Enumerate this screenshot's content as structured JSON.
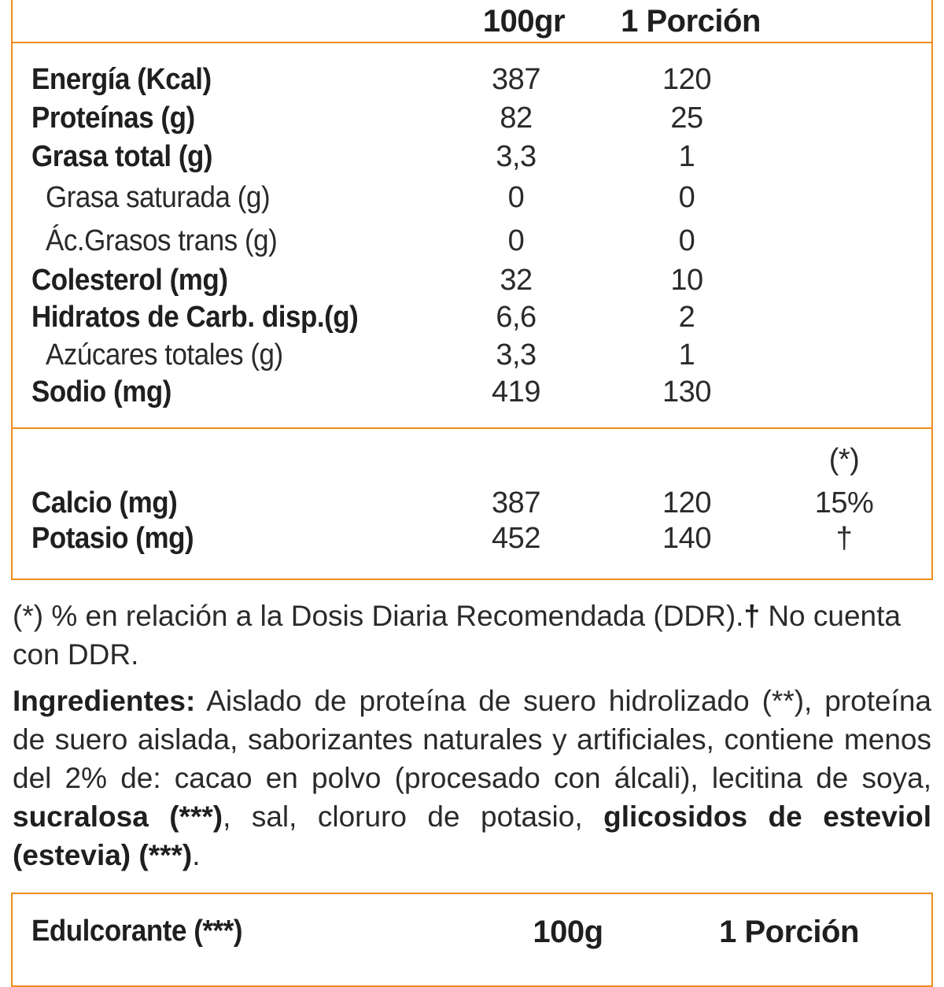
{
  "table": {
    "header": {
      "col1": "100gr",
      "col2": "1 Porción"
    },
    "rows": [
      {
        "label": "Energía (Kcal)",
        "v100": "387",
        "vpor": "120",
        "bold": true
      },
      {
        "label": "Proteínas (g)",
        "v100": "82",
        "vpor": "25",
        "bold": true
      },
      {
        "label": "Grasa total (g)",
        "v100": "3,3",
        "vpor": "1",
        "bold": true
      },
      {
        "label": "Grasa saturada (g)",
        "v100": "0",
        "vpor": "0",
        "bold": false
      },
      {
        "label": "Ác.Grasos trans (g)",
        "v100": "0",
        "vpor": "0",
        "bold": false
      },
      {
        "label": "Colesterol (mg)",
        "v100": "32",
        "vpor": "10",
        "bold": true
      },
      {
        "label": "Hidratos de Carb. disp.(g)",
        "v100": "6,6",
        "vpor": "2",
        "bold": true
      },
      {
        "label": "Azúcares totales (g)",
        "v100": "3,3",
        "vpor": "1",
        "bold": false
      },
      {
        "label": "Sodio (mg)",
        "v100": "419",
        "vpor": "130",
        "bold": true
      }
    ],
    "ddr_header": "(*)",
    "minerals": [
      {
        "label": "Calcio (mg)",
        "v100": "387",
        "vpor": "120",
        "ddr": "15%"
      },
      {
        "label": "Potasio (mg)",
        "v100": "452",
        "vpor": "140",
        "ddr": "†"
      }
    ]
  },
  "footnote": {
    "text": "(*) % en relación a la Dosis Diaria Recomendada (DDR).",
    "dagger": "†",
    "text2": " No cuenta con DDR."
  },
  "ingredients": {
    "label": "Ingredientes:",
    "part1": " Aislado de proteína de suero hidrolizado (**), proteína de suero aislada, saborizantes naturales y artificiales, contiene menos del 2% de: cacao en polvo (procesado con álcali), lecitina de soya, ",
    "sucralose": "sucralosa (***)",
    "part2": ", sal, cloruro de potasio, ",
    "stevia": "glicosidos de esteviol (estevia) (***)",
    "end": "."
  },
  "sweetener": {
    "label": "Edulcorante (***)",
    "col1": "100g",
    "col2": "1 Porción"
  }
}
